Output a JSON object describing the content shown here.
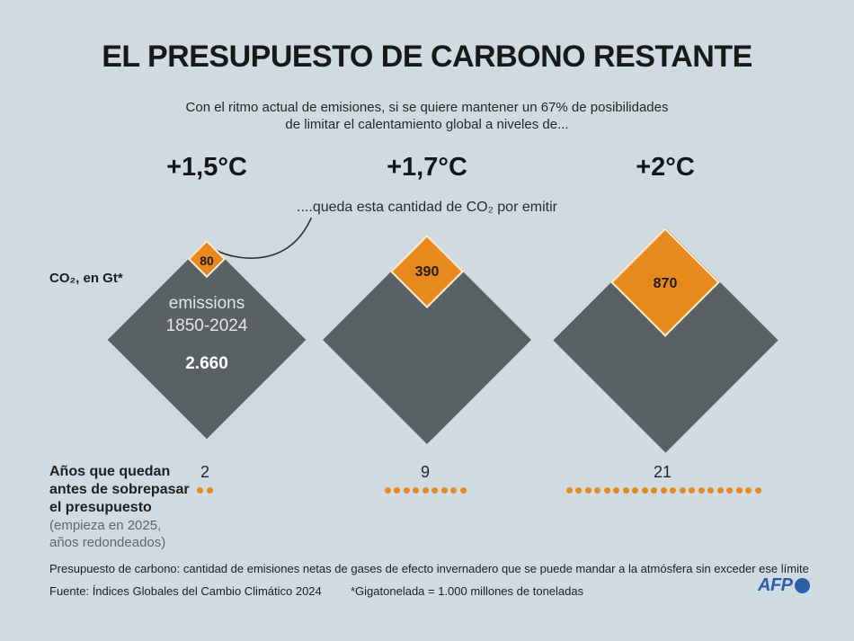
{
  "colors": {
    "background": "#cfdbe0",
    "emitted_grey": "#5a6164",
    "remaining_orange": "#e8891e",
    "diamond_outline_cream": "#f8ecd9",
    "text_dark": "#1d1d1b",
    "text_muted": "#5d686c",
    "afp_blue": "#2d5fa9"
  },
  "header": {
    "title": "EL PRESUPUESTO DE CARBONO RESTANTE",
    "subtitle_line1": "Con el ritmo actual de emisiones, si se quiere mantener un 67% de posibilidades",
    "subtitle_line2": "de limitar el calentamiento global a niveles de..."
  },
  "annotation": "....queda esta cantidad de CO₂ por emitir",
  "unit_label": "CO₂, en Gt*",
  "scenarios": [
    {
      "temp": "+1,5°C",
      "remaining": "80",
      "years": "2",
      "dots": 2
    },
    {
      "temp": "+1,7°C",
      "remaining": "390",
      "years": "9",
      "dots": 9
    },
    {
      "temp": "+2°C",
      "remaining": "870",
      "years": "21",
      "dots": 21
    }
  ],
  "emitted": {
    "label_line1": "emissions",
    "label_line2": "1850-2024",
    "value": "2.660"
  },
  "years_label": {
    "bold_lines": [
      "Años que quedan",
      "antes de sobrepasar",
      "el presupuesto"
    ],
    "light_lines": [
      "(empieza en 2025,",
      "años redondeados)"
    ]
  },
  "footer": {
    "definition": "Presupuesto de carbono: cantidad de emisiones netas de gases de efecto invernadero que se puede mandar a la atmósfera sin exceder ese límite",
    "source": "Fuente: Índices Globales del Cambio Climático 2024",
    "note": "*Gigatonelada = 1.000 millones de toneladas",
    "logo": "AFP"
  },
  "chart_data": {
    "type": "bar",
    "title": "EL PRESUPUESTO DE CARBONO RESTANTE",
    "subtitle": "Con el ritmo actual de emisiones, si se quiere mantener un 67% de posibilidades de limitar el calentamiento global a niveles de...",
    "categories": [
      "+1,5°C",
      "+1,7°C",
      "+2°C"
    ],
    "series": [
      {
        "name": "emissions 1850-2024",
        "values": [
          2660,
          2660,
          2660
        ]
      },
      {
        "name": "queda esta cantidad de CO₂ por emitir",
        "values": [
          80,
          390,
          870
        ]
      }
    ],
    "years_remaining": [
      2,
      9,
      21
    ],
    "unit": "Gt CO₂",
    "ylabel": "CO₂, en Gt*",
    "legend_position": "none",
    "grid": false
  }
}
